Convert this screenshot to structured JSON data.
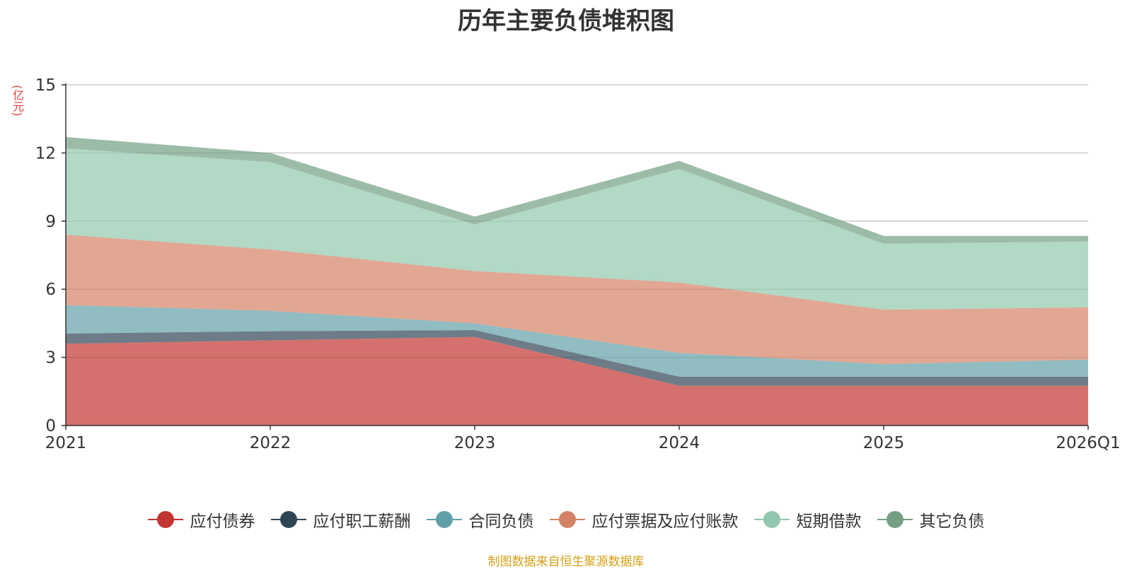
{
  "chart_data": {
    "type": "area",
    "stacked": true,
    "title": "历年主要负债堆积图",
    "unit": "(亿元)",
    "categories": [
      "2021",
      "2022",
      "2023",
      "2024",
      "2025",
      "2026Q1"
    ],
    "ylim": [
      0,
      15
    ],
    "yticks": [
      0,
      3,
      6,
      9,
      12,
      15
    ],
    "grid": true,
    "legend_position": "bottom",
    "series": [
      {
        "name": "应付债券",
        "color": "#c23531",
        "values": [
          3.6,
          3.75,
          3.9,
          1.75,
          1.75,
          1.75
        ]
      },
      {
        "name": "应付职工薪酬",
        "color": "#2f4554",
        "values": [
          0.45,
          0.4,
          0.3,
          0.4,
          0.4,
          0.4
        ]
      },
      {
        "name": "合同负债",
        "color": "#61a0a8",
        "values": [
          1.25,
          0.9,
          0.3,
          1.05,
          0.55,
          0.75
        ]
      },
      {
        "name": "应付票据及应付账款",
        "color": "#d48265",
        "values": [
          3.1,
          2.7,
          2.3,
          3.1,
          2.4,
          2.3
        ]
      },
      {
        "name": "短期借款",
        "color": "#91c7ae",
        "values": [
          3.8,
          3.85,
          2.05,
          5.0,
          2.9,
          2.9
        ]
      },
      {
        "name": "其它负债",
        "color": "#749f83",
        "values": [
          0.5,
          0.4,
          0.35,
          0.35,
          0.35,
          0.25
        ]
      }
    ]
  },
  "source": "制图数据来自恒生聚源数据库"
}
